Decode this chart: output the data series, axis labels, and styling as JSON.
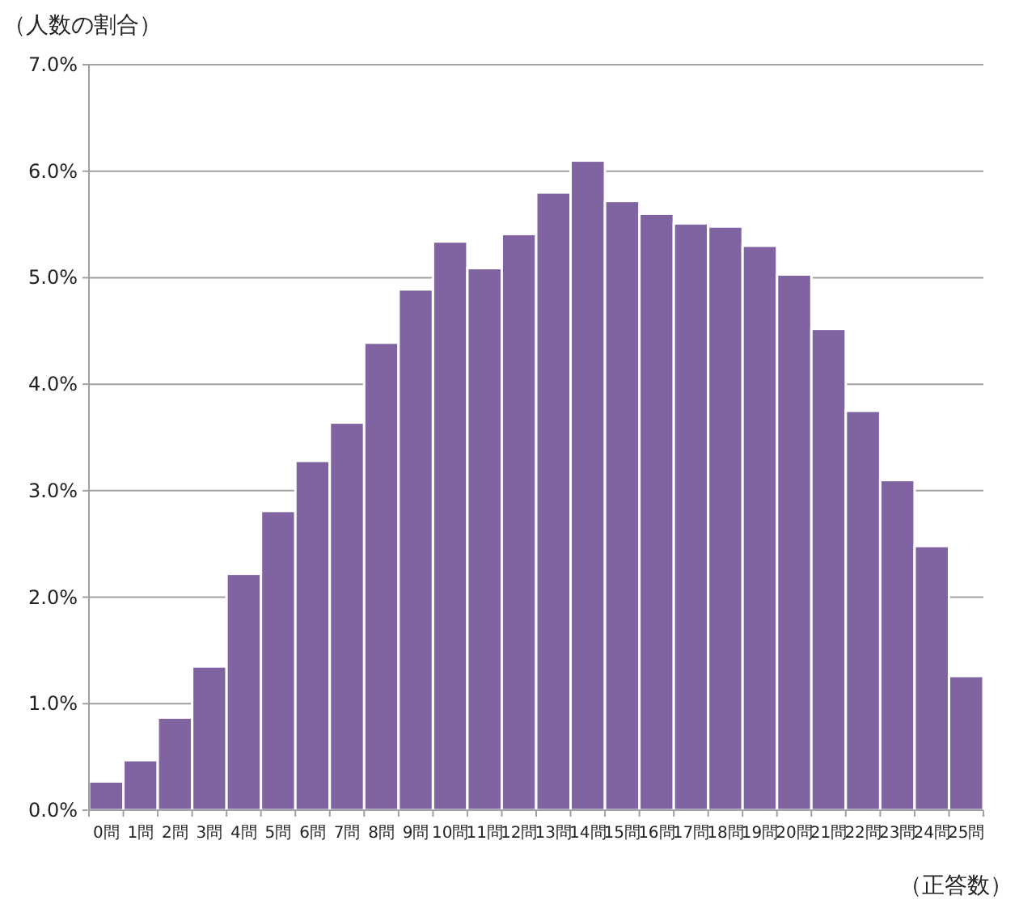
{
  "chart_data": {
    "type": "bar",
    "ylabel": "（人数の割合）",
    "xlabel": "（正答数）",
    "categories": [
      "0問",
      "1問",
      "2問",
      "3問",
      "4問",
      "5問",
      "6問",
      "7問",
      "8問",
      "9問",
      "10問",
      "11問",
      "12問",
      "13問",
      "14問",
      "15問",
      "16問",
      "17問",
      "18問",
      "19問",
      "20問",
      "21問",
      "22問",
      "23問",
      "24問",
      "25問"
    ],
    "values": [
      0.27,
      0.47,
      0.87,
      1.35,
      2.22,
      2.81,
      3.28,
      3.64,
      4.39,
      4.89,
      5.34,
      5.09,
      5.41,
      5.8,
      6.1,
      5.72,
      5.6,
      5.51,
      5.48,
      5.3,
      5.03,
      4.52,
      3.75,
      3.1,
      2.48,
      1.26
    ],
    "color": "#8064a2",
    "ylim": [
      0,
      7
    ],
    "yticks": [
      {
        "value": 0,
        "label": "0.0%"
      },
      {
        "value": 1,
        "label": "1.0%"
      },
      {
        "value": 2,
        "label": "2.0%"
      },
      {
        "value": 3,
        "label": "3.0%"
      },
      {
        "value": 4,
        "label": "4.0%"
      },
      {
        "value": 5,
        "label": "5.0%"
      },
      {
        "value": 6,
        "label": "6.0%"
      },
      {
        "value": 7,
        "label": "7.0%"
      }
    ],
    "grid": "y"
  }
}
